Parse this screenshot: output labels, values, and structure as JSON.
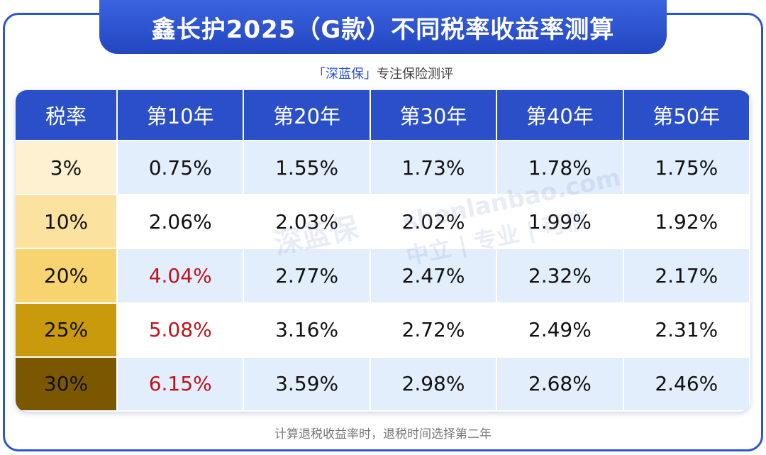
{
  "header": {
    "title": "鑫长护2025（G款）不同税率收益率测算",
    "brand": "「深蓝保」",
    "tagline": "专注保险测评"
  },
  "watermark": {
    "url": "shenlanbao.com",
    "slogan": "中立 | 专业 | 可信",
    "logo": "深蓝保"
  },
  "table": {
    "header": [
      "税率",
      "第10年",
      "第20年",
      "第30年",
      "第40年",
      "第50年"
    ],
    "rows": [
      [
        "3%",
        "0.75%",
        "1.55%",
        "1.73%",
        "1.78%",
        "1.75%"
      ],
      [
        "10%",
        "2.06%",
        "2.03%",
        "2.02%",
        "1.99%",
        "1.92%"
      ],
      [
        "20%",
        "4.04%",
        "2.77%",
        "2.47%",
        "2.32%",
        "2.17%"
      ],
      [
        "25%",
        "5.08%",
        "3.16%",
        "2.72%",
        "2.49%",
        "2.31%"
      ],
      [
        "30%",
        "6.15%",
        "3.59%",
        "2.98%",
        "2.68%",
        "2.46%"
      ]
    ],
    "rate_colors": [
      "#fdf1d2",
      "#fbe29f",
      "#f8d470",
      "#c89a0c",
      "#7b5800"
    ],
    "highlight_color": "#c0121b",
    "highlighted": [
      [
        2,
        1
      ],
      [
        3,
        1
      ],
      [
        4,
        1
      ]
    ]
  },
  "footer": {
    "note": "计算退税收益率时，退税时间选择第二年"
  }
}
